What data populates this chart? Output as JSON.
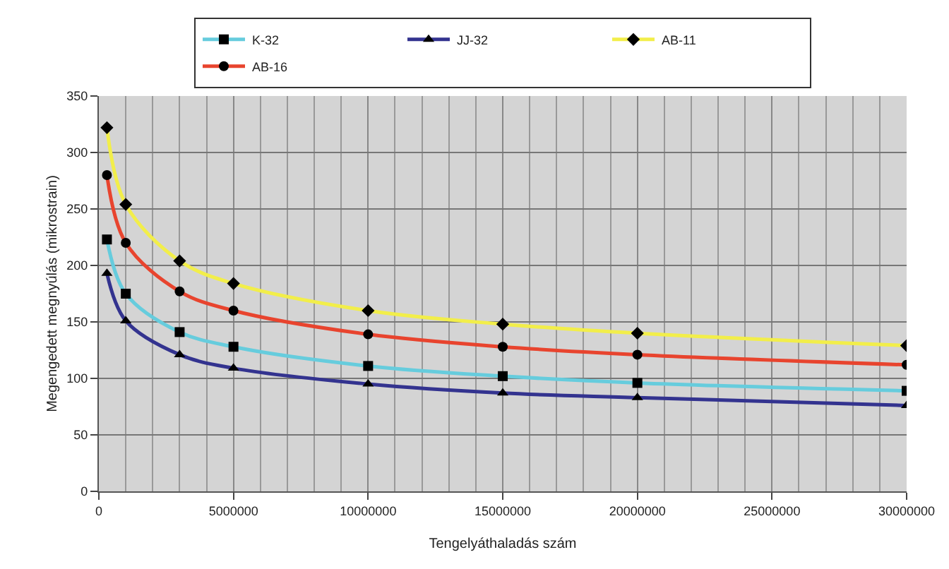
{
  "chart_data": {
    "type": "line",
    "xlabel": "Tengelyáthaladás szám",
    "ylabel": "Megengedett megnyúlás (mikrostrain)",
    "x": [
      300000,
      1000000,
      3000000,
      5000000,
      10000000,
      15000000,
      20000000,
      30000000
    ],
    "xlim": [
      0,
      30000000
    ],
    "xticks": [
      0,
      5000000,
      10000000,
      15000000,
      20000000,
      25000000,
      30000000
    ],
    "ylim": [
      0,
      350
    ],
    "yticks": [
      0,
      50,
      100,
      150,
      200,
      250,
      300,
      350
    ],
    "grid": true,
    "legend": "top",
    "series": [
      {
        "name": "K-32",
        "color": "#66ccdd",
        "marker": "square",
        "values": [
          223,
          175,
          141,
          128,
          111,
          102,
          96,
          89
        ]
      },
      {
        "name": "JJ-32",
        "color": "#33338f",
        "marker": "triangle",
        "values": [
          193,
          151,
          121,
          109,
          95,
          87,
          83,
          76
        ]
      },
      {
        "name": "AB-11",
        "color": "#f2ee4a",
        "marker": "diamond",
        "values": [
          322,
          254,
          204,
          184,
          160,
          148,
          140,
          129
        ]
      },
      {
        "name": "AB-16",
        "color": "#e8442e",
        "marker": "circle",
        "values": [
          280,
          220,
          177,
          160,
          139,
          128,
          121,
          112
        ]
      }
    ]
  }
}
